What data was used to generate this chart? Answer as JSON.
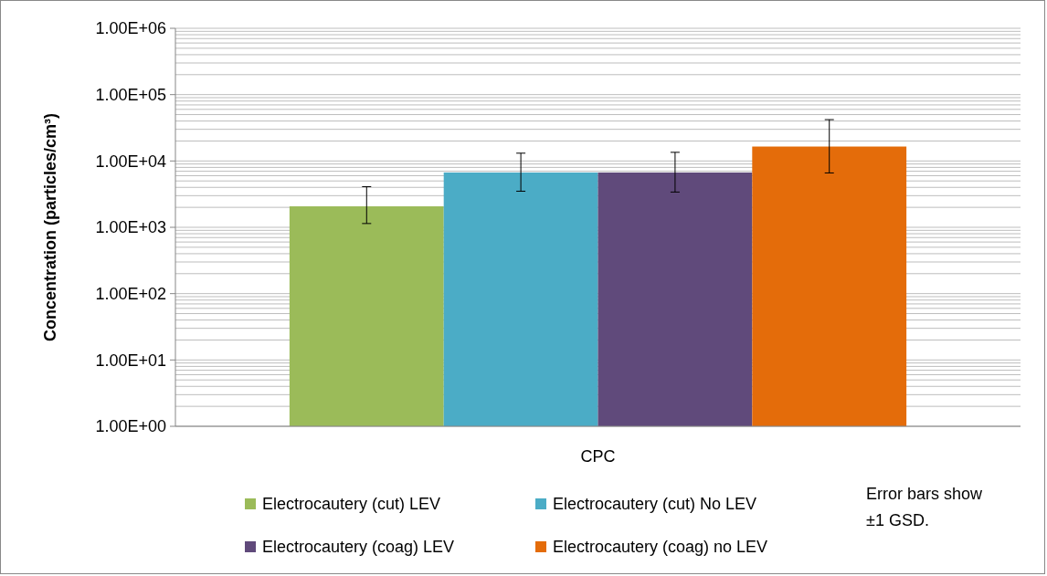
{
  "chart_data": {
    "type": "bar",
    "ylabel": "Concentration (particles/cm³)",
    "categories": [
      "CPC"
    ],
    "series": [
      {
        "name": "Electrocautery (cut) LEV",
        "color": "#9bbb59",
        "values": [
          2070
        ],
        "errors": [
          [
            1140,
            4100
          ]
        ]
      },
      {
        "name": "Electrocautery (cut) No LEV",
        "color": "#4bacc6",
        "values": [
          6700
        ],
        "errors": [
          [
            3500,
            13100
          ]
        ]
      },
      {
        "name": "Electrocautery (coag) LEV",
        "color": "#604a7b",
        "values": [
          6700
        ],
        "errors": [
          [
            3400,
            13500
          ]
        ]
      },
      {
        "name": "Electrocautery (coag) no LEV",
        "color": "#e46c0a",
        "values": [
          16500
        ],
        "errors": [
          [
            6600,
            42000
          ]
        ]
      }
    ],
    "log": "y",
    "ylim": [
      1,
      1000000
    ],
    "yticks": [
      {
        "value": 1,
        "label": "1.00E+00"
      },
      {
        "value": 10,
        "label": "1.00E+01"
      },
      {
        "value": 100,
        "label": "1.00E+02"
      },
      {
        "value": 1000,
        "label": "1.00E+03"
      },
      {
        "value": 10000,
        "label": "1.00E+04"
      },
      {
        "value": 100000,
        "label": "1.00E+05"
      },
      {
        "value": 1000000,
        "label": "1.00E+06"
      }
    ],
    "grid": "y",
    "legend": "bottom",
    "annotations": [
      "Error bars show ±1 GSD."
    ]
  }
}
